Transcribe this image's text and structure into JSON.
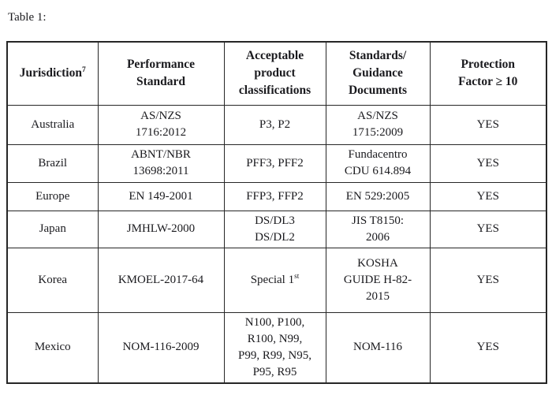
{
  "caption": "Table 1:",
  "colors": {
    "text": "#1a1a1e",
    "border": "#262626",
    "background": "#ffffff"
  },
  "table": {
    "columns": [
      {
        "id": "jurisdiction",
        "lines": [
          "Jurisdiction{7}"
        ]
      },
      {
        "id": "performance_standard",
        "lines": [
          "Performance",
          "Standard"
        ]
      },
      {
        "id": "classifications",
        "lines": [
          "Acceptable",
          "product",
          "classifications"
        ]
      },
      {
        "id": "documents",
        "lines": [
          "Standards/",
          "Guidance",
          "Documents"
        ]
      },
      {
        "id": "protection_factor",
        "lines": [
          "Protection",
          "Factor ≥ 10"
        ]
      }
    ],
    "rows": [
      {
        "id": "australia",
        "cells": [
          [
            "Australia"
          ],
          [
            "AS/NZS",
            "1716:2012"
          ],
          [
            "P3, P2"
          ],
          [
            "AS/NZS",
            "1715:2009"
          ],
          [
            "YES"
          ]
        ]
      },
      {
        "id": "brazil",
        "cells": [
          [
            "Brazil"
          ],
          [
            "ABNT/NBR",
            "13698:2011"
          ],
          [
            "PFF3, PFF2"
          ],
          [
            "Fundacentro",
            "CDU 614.894"
          ],
          [
            "YES"
          ]
        ]
      },
      {
        "id": "europe",
        "cells": [
          [
            "Europe"
          ],
          [
            "EN 149-2001"
          ],
          [
            "FFP3, FFP2"
          ],
          [
            "EN 529:2005"
          ],
          [
            "YES"
          ]
        ]
      },
      {
        "id": "japan",
        "cells": [
          [
            "Japan"
          ],
          [
            "JMHLW-2000"
          ],
          [
            "DS/DL3",
            "DS/DL2"
          ],
          [
            "JIS T8150:",
            "2006"
          ],
          [
            "YES"
          ]
        ]
      },
      {
        "id": "korea",
        "cells": [
          [
            "Korea"
          ],
          [
            "KMOEL-2017-64"
          ],
          [
            "Special 1{st}"
          ],
          [
            "KOSHA",
            "GUIDE H-82-",
            "2015"
          ],
          [
            "YES"
          ]
        ]
      },
      {
        "id": "mexico",
        "cells": [
          [
            "Mexico"
          ],
          [
            "NOM-116-2009"
          ],
          [
            "N100, P100,",
            "R100, N99,",
            "P99, R99, N95,",
            "P95, R95"
          ],
          [
            "NOM-116"
          ],
          [
            "YES"
          ]
        ]
      }
    ]
  }
}
